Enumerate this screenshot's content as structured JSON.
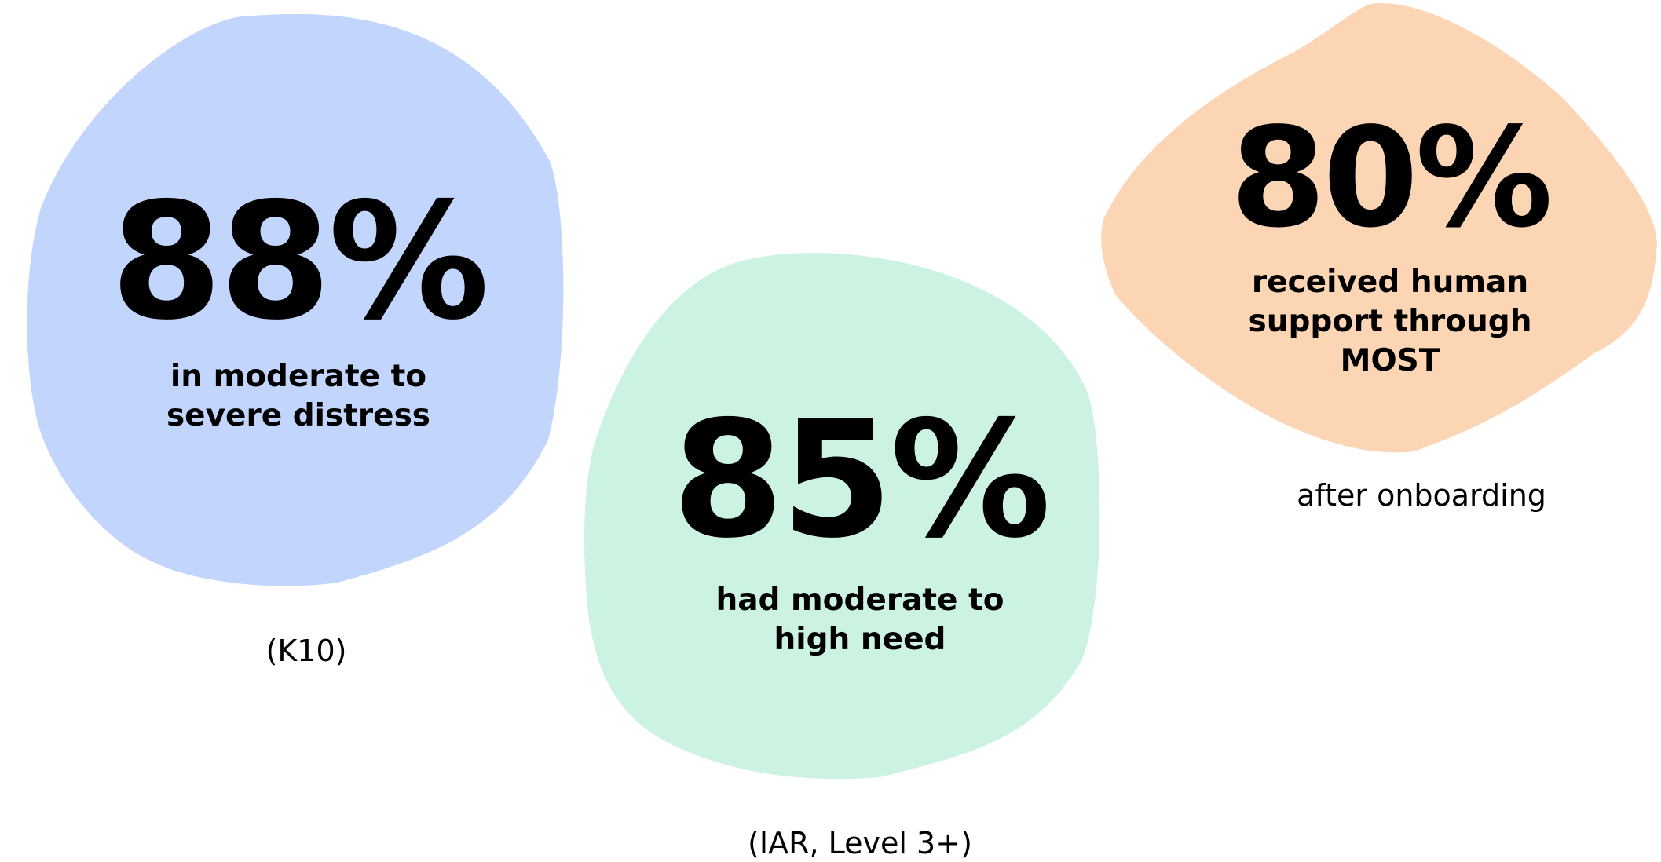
{
  "stats": [
    {
      "value": "88%",
      "description_lines": [
        "in moderate to",
        "severe distress"
      ],
      "note": "(K10)",
      "color": "#c2d6fd"
    },
    {
      "value": "85%",
      "description_lines": [
        "had moderate to",
        "high need"
      ],
      "note": "(IAR, Level 3+)",
      "color": "#ccf2e1"
    },
    {
      "value": "80%",
      "description_lines": [
        "received human",
        "support through",
        "MOST"
      ],
      "note": "after onboarding",
      "color": "#fbd5b4"
    }
  ]
}
